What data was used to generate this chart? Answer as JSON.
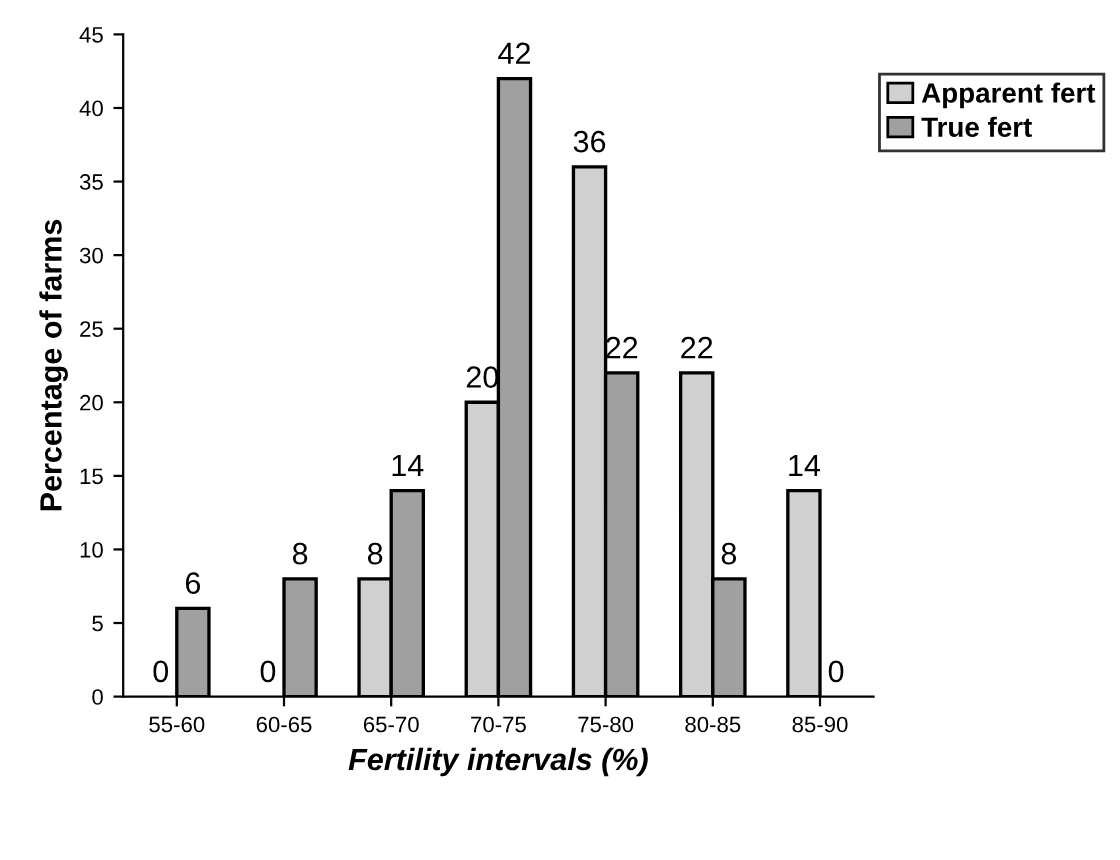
{
  "chart_data": {
    "type": "bar",
    "xlabel": "Fertility intervals (%)",
    "ylabel": "Percentage of farms",
    "categories": [
      "55-60",
      "60-65",
      "65-70",
      "70-75",
      "75-80",
      "80-85",
      "85-90"
    ],
    "series": [
      {
        "name": "Apparent fert",
        "color": "#d0d0d0",
        "values": [
          0,
          0,
          8,
          20,
          36,
          22,
          14
        ]
      },
      {
        "name": "True fert",
        "color": "#a0a0a0",
        "values": [
          6,
          8,
          14,
          42,
          22,
          8,
          0
        ]
      }
    ],
    "ylim": [
      0,
      45
    ],
    "yticks": [
      0,
      5,
      10,
      15,
      20,
      25,
      30,
      35,
      40,
      45
    ],
    "grid": false,
    "legend": "top right",
    "data_labels": true
  }
}
